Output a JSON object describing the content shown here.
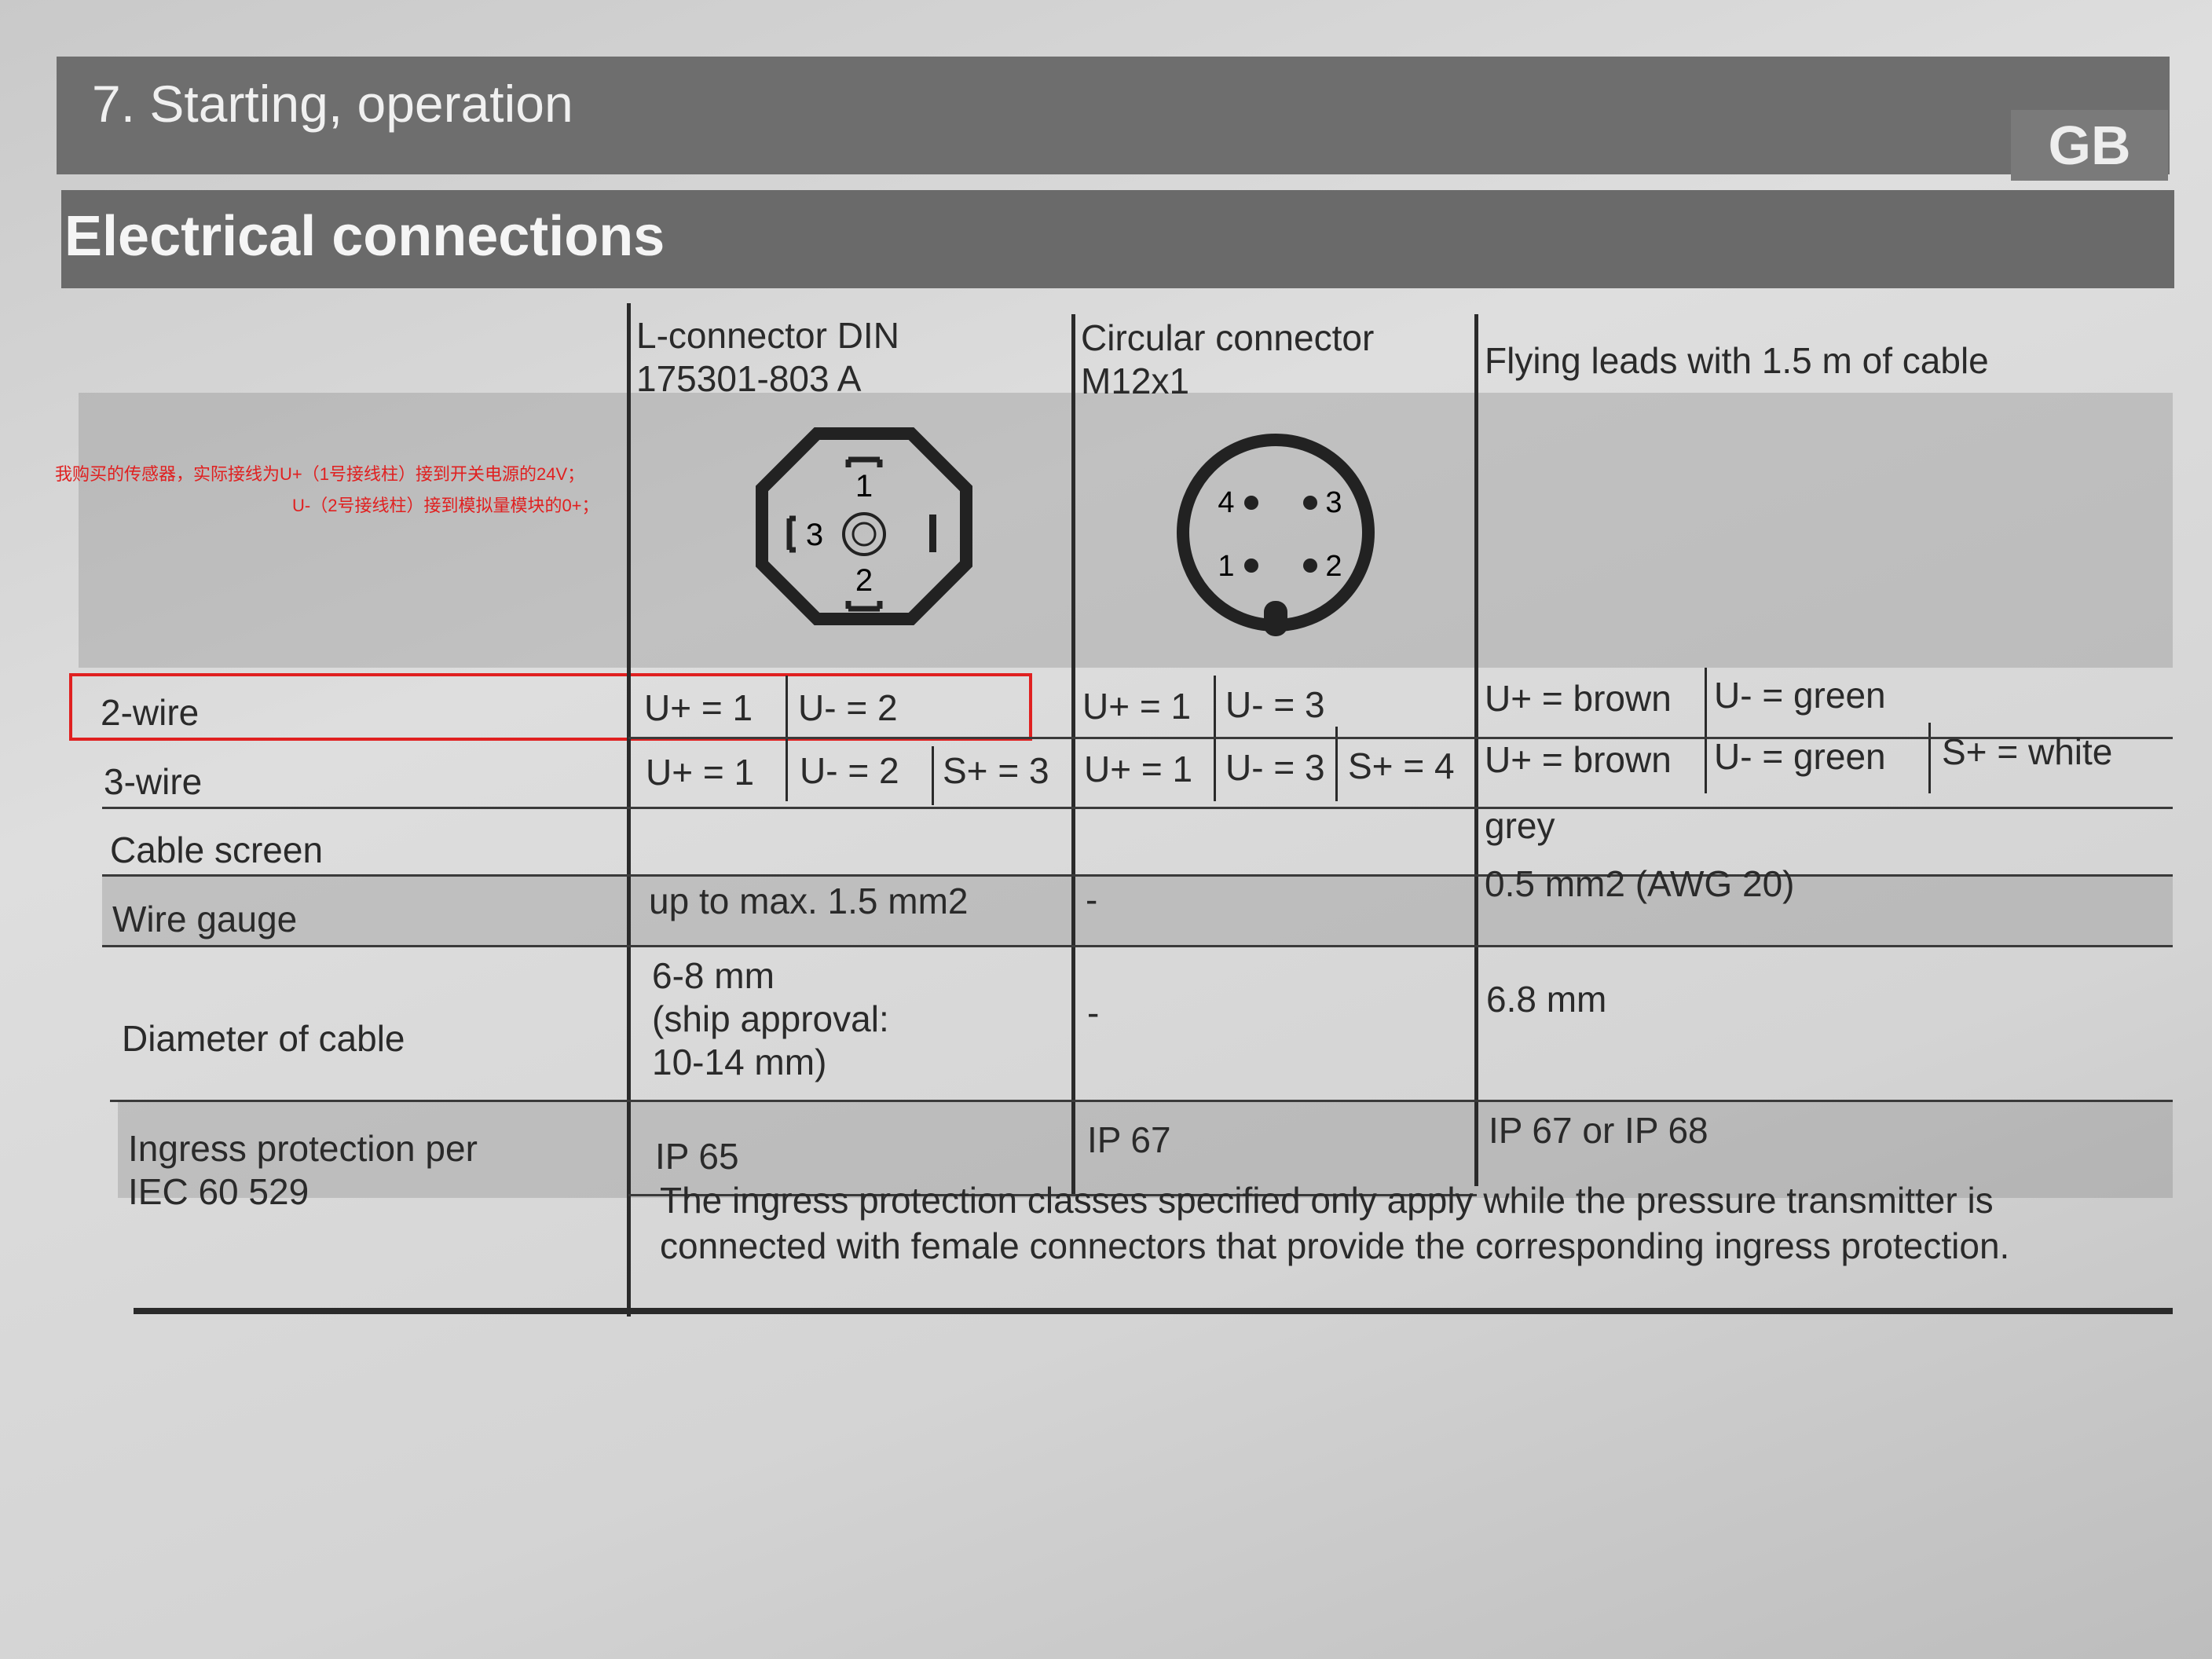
{
  "header": {
    "section_title": "7. Starting, operation",
    "language_badge": "GB",
    "subsection_title": "Electrical connections"
  },
  "annotation": {
    "line1": "我购买的传感器，实际接线为U+（1号接线柱）接到开关电源的24V；",
    "line2": "U-（2号接线柱）接到模拟量模块的0+；",
    "color": "#e02020"
  },
  "table": {
    "columns": [
      {
        "line1": "L-connector DIN",
        "line2": "175301-803 A"
      },
      {
        "line1": "Circular connector",
        "line2": "M12x1"
      },
      {
        "line1": "Flying leads with 1.5 m of cable",
        "line2": ""
      }
    ],
    "l_connector_pins": [
      "1",
      "2",
      "3"
    ],
    "m12_pins": [
      "4",
      "3",
      "1",
      "2"
    ],
    "rows": {
      "two_wire": {
        "label": "2-wire",
        "c1": [
          "U+ = 1",
          "U- = 2"
        ],
        "c2": [
          "U+ = 1",
          "U- = 3"
        ],
        "c3": [
          "U+ = brown",
          "U- = green"
        ]
      },
      "three_wire": {
        "label": "3-wire",
        "c1": [
          "U+ = 1",
          "U- = 2",
          "S+ = 3"
        ],
        "c2": [
          "U+ = 1",
          "U- = 3",
          "S+ = 4"
        ],
        "c3": [
          "U+ = brown",
          "U- = green",
          "S+ = white"
        ]
      },
      "cable_screen": {
        "label": "Cable screen",
        "c1": "",
        "c2": "",
        "c3": "grey"
      },
      "wire_gauge": {
        "label": "Wire gauge",
        "c1": "up to max. 1.5 mm2",
        "c2": "-",
        "c3": "0.5 mm2 (AWG 20)"
      },
      "diameter": {
        "label": "Diameter of cable",
        "c1": [
          "6-8 mm",
          "(ship approval:",
          "10-14 mm)"
        ],
        "c2": "-",
        "c3": "6.8 mm"
      },
      "ingress": {
        "label1": "Ingress protection per",
        "label2": "IEC 60 529",
        "c1": "IP 65",
        "c2": "IP 67",
        "c3": "IP 67 or IP 68"
      }
    },
    "note_line1": "The ingress protection classes specified only apply while the pressure transmitter is",
    "note_line2": "connected with female connectors that provide the corresponding ingress protection."
  }
}
